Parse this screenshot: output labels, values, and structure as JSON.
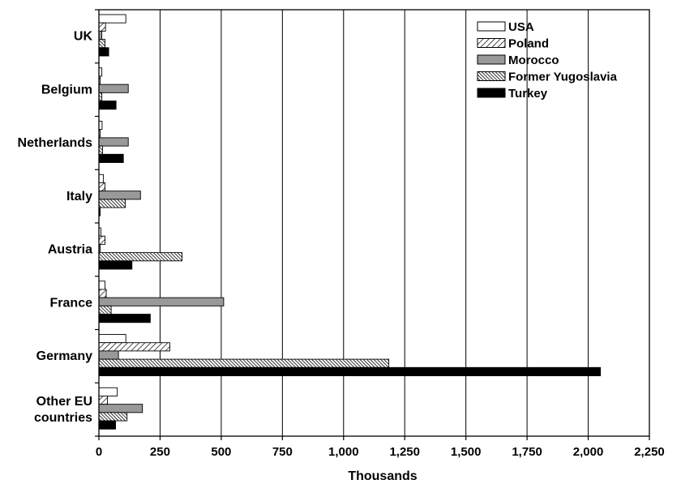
{
  "chart_data": {
    "type": "bar",
    "orientation": "horizontal",
    "title": "",
    "xlabel": "Thousands",
    "ylabel": "",
    "xlim": [
      0,
      2250
    ],
    "xticks": [
      0,
      250,
      500,
      750,
      1000,
      1250,
      1500,
      1750,
      2000,
      2250
    ],
    "xtick_labels": [
      "0",
      "250",
      "500",
      "750",
      "1,000",
      "1,250",
      "1,500",
      "1,750",
      "2,000",
      "2,250"
    ],
    "grid": "vertical",
    "legend_position": "top-right",
    "categories": [
      "UK",
      "Belgium",
      "Netherlands",
      "Italy",
      "Austria",
      "France",
      "Germany",
      "Other EU countries"
    ],
    "category_lines": [
      [
        "UK"
      ],
      [
        "Belgium"
      ],
      [
        "Netherlands"
      ],
      [
        "Italy"
      ],
      [
        "Austria"
      ],
      [
        "France"
      ],
      [
        "Germany"
      ],
      [
        "Other EU",
        "countries"
      ]
    ],
    "series": [
      {
        "name": "USA",
        "pattern": "white",
        "values": [
          110,
          12,
          13,
          18,
          8,
          25,
          110,
          75
        ]
      },
      {
        "name": "Poland",
        "pattern": "diag-light",
        "values": [
          27,
          5,
          5,
          25,
          25,
          30,
          290,
          35
        ]
      },
      {
        "name": "Morocco",
        "pattern": "gray",
        "values": [
          12,
          120,
          120,
          170,
          5,
          510,
          80,
          178
        ]
      },
      {
        "name": "Former Yugoslavia",
        "pattern": "diag-dense",
        "values": [
          25,
          12,
          15,
          108,
          340,
          50,
          1185,
          115
        ]
      },
      {
        "name": "Turkey",
        "pattern": "black",
        "values": [
          40,
          70,
          100,
          5,
          135,
          210,
          2050,
          68
        ]
      }
    ],
    "colors": {
      "gray": "#999999",
      "black": "#000000",
      "white": "#ffffff"
    }
  }
}
